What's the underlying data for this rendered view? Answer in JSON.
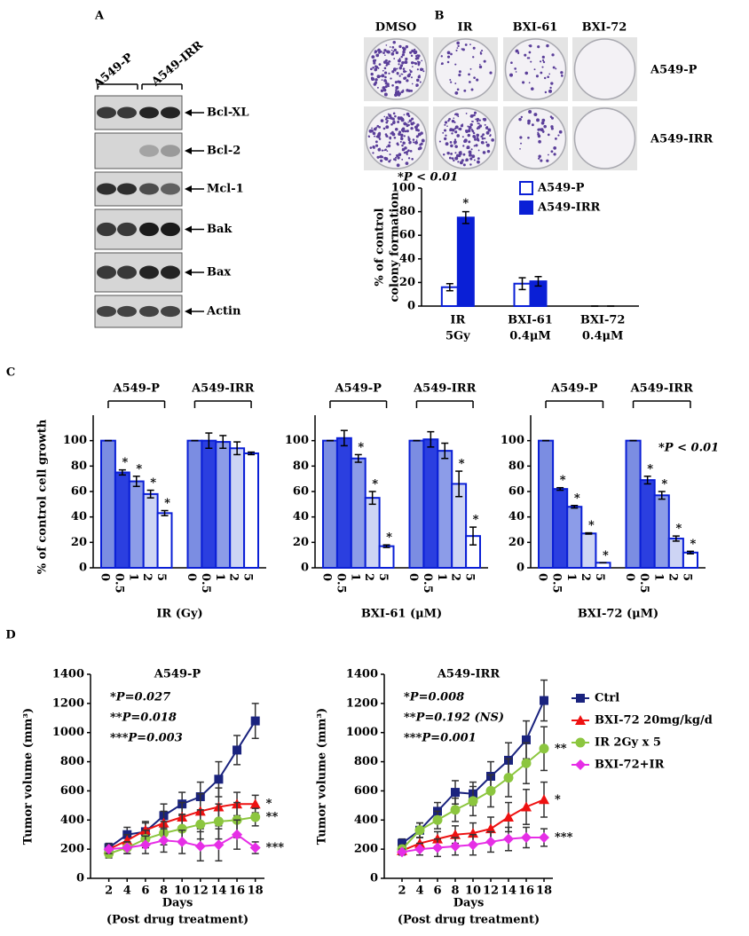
{
  "panel_labels": [
    "A",
    "B",
    "C",
    "D"
  ],
  "blot": {
    "groups": [
      "A549-P",
      "A549-IRR"
    ],
    "bands": [
      "Bcl-XL",
      "Bcl-2",
      "Mcl-1",
      "Bak",
      "Bax",
      "Actin"
    ]
  },
  "colony": {
    "columns": [
      "DMSO",
      "IR",
      "BXI-61",
      "BXI-72"
    ],
    "rows": [
      "A549-P",
      "A549-IRR"
    ]
  },
  "chart_data": [
    {
      "type": "bar",
      "annotation": "*P < 0.01",
      "ylabel": [
        "% of control",
        "colony formation"
      ],
      "categories": [
        [
          "IR",
          "5Gy"
        ],
        [
          "BXI-61",
          "0.4μM"
        ],
        [
          "BXI-72",
          "0.4μM"
        ]
      ],
      "series": [
        {
          "name": "A549-P",
          "color": "#ffffff",
          "edge": "#0a1fd6",
          "values": [
            16,
            19,
            0
          ],
          "errors": [
            3,
            5,
            0
          ]
        },
        {
          "name": "A549-IRR",
          "color": "#0a1fd6",
          "edge": "#0a1fd6",
          "values": [
            75,
            21,
            0
          ],
          "errors": [
            5,
            4,
            0
          ],
          "stars": [
            "*",
            null,
            null
          ]
        }
      ],
      "ylim": [
        0,
        100
      ],
      "yticks": [
        0,
        20,
        40,
        60,
        80,
        100
      ],
      "legend": "top-right"
    },
    {
      "type": "bar",
      "ylabel": "% of control cell growth",
      "xlabel": "IR (Gy)",
      "categories": [
        "0",
        "0.5",
        "1",
        "2",
        "5"
      ],
      "colors": [
        "#7b8de2",
        "#2b3fe0",
        "#8c9ce8",
        "#cdd4f4",
        "#ffffff"
      ],
      "edge": "#0a1fd6",
      "groups": [
        {
          "name": "A549-P",
          "values": [
            100,
            75,
            68,
            58,
            43
          ],
          "errors": [
            0,
            2,
            4,
            3,
            2
          ],
          "stars": [
            null,
            "*",
            "*",
            "*",
            "*"
          ]
        },
        {
          "name": "A549-IRR",
          "values": [
            100,
            100,
            99,
            94,
            90
          ],
          "errors": [
            0,
            6,
            5,
            5,
            1
          ]
        }
      ],
      "ylim": [
        0,
        120
      ],
      "yticks": [
        0,
        20,
        40,
        60,
        80,
        100
      ]
    },
    {
      "type": "bar",
      "xlabel": "BXI-61 (μM)",
      "categories": [
        "0",
        "0.5",
        "1",
        "2",
        "5"
      ],
      "colors": [
        "#7b8de2",
        "#2b3fe0",
        "#8c9ce8",
        "#cdd4f4",
        "#ffffff"
      ],
      "edge": "#0a1fd6",
      "groups": [
        {
          "name": "A549-P",
          "values": [
            100,
            102,
            86,
            55,
            17
          ],
          "errors": [
            0,
            6,
            3,
            5,
            1
          ],
          "stars": [
            null,
            null,
            "*",
            "*",
            "*"
          ]
        },
        {
          "name": "A549-IRR",
          "values": [
            100,
            101,
            92,
            66,
            25
          ],
          "errors": [
            0,
            6,
            6,
            10,
            7
          ],
          "stars": [
            null,
            null,
            null,
            "*",
            "*"
          ]
        }
      ],
      "ylim": [
        0,
        120
      ],
      "yticks": [
        0,
        20,
        40,
        60,
        80,
        100
      ]
    },
    {
      "type": "bar",
      "xlabel": "BXI-72 (μM)",
      "annotation": "*P < 0.01",
      "categories": [
        "0",
        "0.5",
        "1",
        "2",
        "5"
      ],
      "colors": [
        "#7b8de2",
        "#2b3fe0",
        "#8c9ce8",
        "#cdd4f4",
        "#ffffff"
      ],
      "edge": "#0a1fd6",
      "groups": [
        {
          "name": "A549-P",
          "values": [
            100,
            62,
            48,
            27,
            4
          ],
          "errors": [
            0,
            1,
            1,
            0.5,
            0
          ],
          "stars": [
            null,
            "*",
            "*",
            "*",
            "*"
          ]
        },
        {
          "name": "A549-IRR",
          "values": [
            100,
            69,
            57,
            23,
            12
          ],
          "errors": [
            0,
            3,
            3,
            2,
            1
          ],
          "stars": [
            null,
            "*",
            "*",
            "*",
            "*"
          ]
        }
      ],
      "ylim": [
        0,
        120
      ],
      "yticks": [
        0,
        20,
        40,
        60,
        80,
        100
      ]
    },
    {
      "type": "line",
      "title": "A549-P",
      "annotations": [
        "*P=0.027",
        "**P=0.018",
        "***P=0.003"
      ],
      "ylabel": "Tumor volume (mm³)",
      "xlabel": [
        "Days",
        "(Post drug treatment)"
      ],
      "x": [
        2,
        4,
        6,
        8,
        10,
        12,
        14,
        16,
        18
      ],
      "series": [
        {
          "color": "#1a237e",
          "marker": "square",
          "values": [
            210,
            300,
            320,
            430,
            510,
            560,
            680,
            880,
            1080
          ],
          "errors": [
            30,
            50,
            60,
            80,
            80,
            100,
            120,
            100,
            120
          ]
        },
        {
          "color": "#ee1111",
          "marker": "triangle",
          "values": [
            200,
            260,
            330,
            380,
            420,
            460,
            490,
            510,
            510
          ],
          "errors": [
            30,
            40,
            60,
            80,
            100,
            120,
            130,
            80,
            60
          ],
          "end_label": "*"
        },
        {
          "color": "#8cc63f",
          "marker": "circle",
          "values": [
            170,
            210,
            270,
            310,
            340,
            370,
            390,
            400,
            420
          ],
          "errors": [
            30,
            40,
            60,
            80,
            100,
            100,
            120,
            120,
            60
          ],
          "end_label": "**"
        },
        {
          "color": "#e62ee6",
          "marker": "diamond",
          "values": [
            200,
            210,
            230,
            260,
            250,
            220,
            230,
            300,
            210
          ],
          "errors": [
            30,
            40,
            60,
            80,
            80,
            100,
            110,
            100,
            40
          ],
          "end_label": "***"
        }
      ],
      "xlim": [
        0,
        19
      ],
      "xticks": [
        2,
        4,
        6,
        8,
        10,
        12,
        14,
        16,
        18
      ],
      "ylim": [
        0,
        1400
      ],
      "yticks": [
        0,
        200,
        400,
        600,
        800,
        1000,
        1200,
        1400
      ]
    },
    {
      "type": "line",
      "title": "A549-IRR",
      "annotations": [
        "*P=0.008",
        "**P=0.192 (NS)",
        "***P=0.001"
      ],
      "ylabel": "Tumor volume (mm³)",
      "xlabel": [
        "Days",
        "(Post drug treatment)"
      ],
      "x": [
        2,
        4,
        6,
        8,
        10,
        12,
        14,
        16,
        18
      ],
      "series": [
        {
          "name": "Ctrl",
          "color": "#1a237e",
          "marker": "square",
          "values": [
            240,
            330,
            460,
            590,
            580,
            700,
            810,
            950,
            1220
          ],
          "errors": [
            30,
            50,
            60,
            80,
            80,
            100,
            120,
            130,
            140
          ]
        },
        {
          "name": "BXI-72 20mg/kg/d",
          "color": "#ee1111",
          "marker": "triangle",
          "values": [
            190,
            240,
            270,
            300,
            310,
            340,
            420,
            490,
            540
          ],
          "errors": [
            20,
            40,
            50,
            60,
            70,
            80,
            100,
            120,
            120
          ],
          "end_label": "*"
        },
        {
          "name": "IR 2Gy x 5",
          "color": "#8cc63f",
          "marker": "circle",
          "values": [
            200,
            330,
            400,
            470,
            530,
            600,
            690,
            790,
            890
          ],
          "errors": [
            30,
            50,
            60,
            80,
            100,
            110,
            130,
            140,
            150
          ],
          "end_label": "**"
        },
        {
          "name": "BXI-72+IR",
          "color": "#e62ee6",
          "marker": "diamond",
          "values": [
            180,
            200,
            210,
            220,
            230,
            250,
            270,
            280,
            280
          ],
          "errors": [
            20,
            40,
            60,
            60,
            70,
            70,
            80,
            70,
            60
          ],
          "end_label": "***"
        }
      ],
      "xlim": [
        0,
        19
      ],
      "xticks": [
        2,
        4,
        6,
        8,
        10,
        12,
        14,
        16,
        18
      ],
      "ylim": [
        0,
        1400
      ],
      "yticks": [
        0,
        200,
        400,
        600,
        800,
        1000,
        1200,
        1400
      ],
      "legend": "right"
    }
  ]
}
